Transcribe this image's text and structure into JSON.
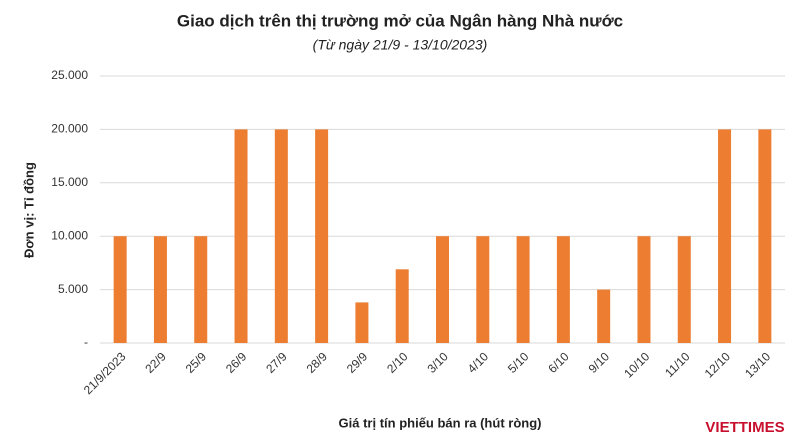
{
  "chart_data": {
    "type": "bar",
    "title": "Giao dịch trên thị trường mở của Ngân hàng Nhà nước",
    "subtitle": "(Từ ngày 21/9 - 13/10/2023)",
    "y_label": "Đơn vị: Tỉ đồng",
    "x_label": "Giá trị tín phiếu bán ra (hút ròng)",
    "watermark": "VIETTIMES",
    "categories": [
      "21/9/2023",
      "22/9",
      "25/9",
      "26/9",
      "27/9",
      "28/9",
      "29/9",
      "2/10",
      "3/10",
      "4/10",
      "5/10",
      "6/10",
      "9/10",
      "10/10",
      "11/10",
      "12/10",
      "13/10"
    ],
    "values": [
      10000,
      10000,
      10000,
      20000,
      20000,
      20000,
      3800,
      6900,
      10000,
      10000,
      10000,
      10000,
      5000,
      10000,
      10000,
      20000,
      20000
    ],
    "color": "#ed7d31",
    "ylim": [
      0,
      25000
    ],
    "yticks": [
      {
        "value": 0,
        "label": "-"
      },
      {
        "value": 5000,
        "label": "5.000"
      },
      {
        "value": 10000,
        "label": "10.000"
      },
      {
        "value": 15000,
        "label": "15.000"
      },
      {
        "value": 20000,
        "label": "20.000"
      },
      {
        "value": 25000,
        "label": "25.000"
      }
    ],
    "grid": true
  }
}
